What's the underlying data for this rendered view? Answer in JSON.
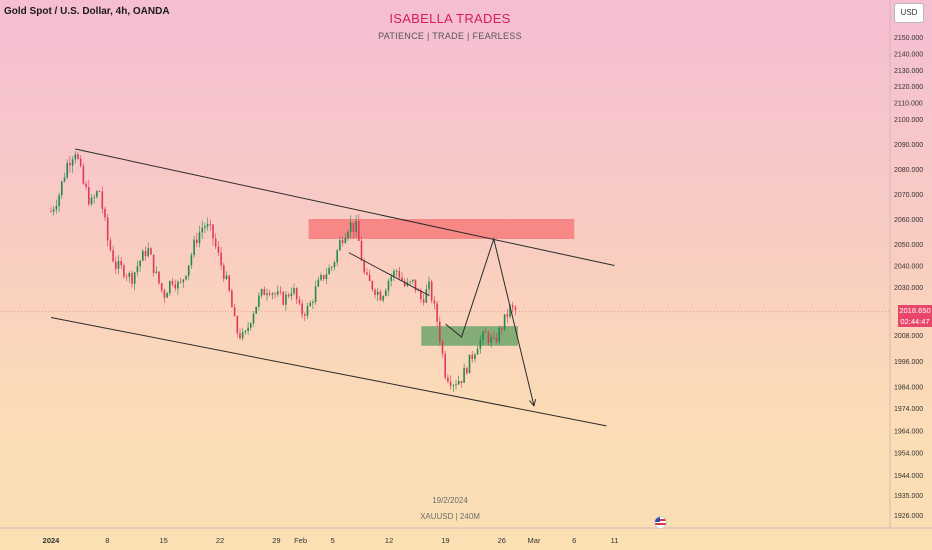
{
  "header": {
    "symbol_title": "Gold Spot / U.S. Dollar, 4h, OANDA",
    "brand": "ISABELLA TRADES",
    "tagline": "PATIENCE  |  TRADE  |  FEARLESS",
    "currency_button": "USD"
  },
  "last_price": {
    "value": "2018.650",
    "countdown": "02:44:47"
  },
  "footer": {
    "date": "19/2/2024",
    "symbol": "XAUUSD | 240M",
    "flag_icon": "us-flag-icon"
  },
  "chart_data": {
    "type": "candlestick",
    "symbol": "XAUUSD",
    "timeframe": "4h",
    "ylim": [
      1920,
      2156
    ],
    "y_ticks": [
      "2150.000",
      "2140.000",
      "2130.000",
      "2120.000",
      "2110.000",
      "2100.000",
      "2090.000",
      "2080.000",
      "2070.000",
      "2060.000",
      "2050.000",
      "2040.000",
      "2030.000",
      "2018.650",
      "2008.000",
      "1996.000",
      "1984.000",
      "1974.000",
      "1964.000",
      "1954.000",
      "1944.000",
      "1935.000",
      "1926.000"
    ],
    "x_ticks": [
      "2024",
      "8",
      "15",
      "22",
      "29",
      "Feb",
      "5",
      "12",
      "19",
      "26",
      "Mar",
      "6",
      "11"
    ],
    "price_path": [
      [
        "2024-01-01",
        2063
      ],
      [
        "2024-01-02",
        2070
      ],
      [
        "2024-01-03",
        2082
      ],
      [
        "2024-01-04",
        2088
      ],
      [
        "2024-01-05",
        2074
      ],
      [
        "2024-01-06",
        2066
      ],
      [
        "2024-01-07",
        2072
      ],
      [
        "2024-01-08",
        2052
      ],
      [
        "2024-01-09",
        2040
      ],
      [
        "2024-01-10",
        2038
      ],
      [
        "2024-01-11",
        2034
      ],
      [
        "2024-01-12",
        2042
      ],
      [
        "2024-01-13",
        2048
      ],
      [
        "2024-01-14",
        2036
      ],
      [
        "2024-01-15",
        2026
      ],
      [
        "2024-01-16",
        2034
      ],
      [
        "2024-01-17",
        2030
      ],
      [
        "2024-01-18",
        2040
      ],
      [
        "2024-01-19",
        2052
      ],
      [
        "2024-01-20",
        2058
      ],
      [
        "2024-01-21",
        2054
      ],
      [
        "2024-01-22",
        2042
      ],
      [
        "2024-01-23",
        2030
      ],
      [
        "2024-01-24",
        2010
      ],
      [
        "2024-01-25",
        2006
      ],
      [
        "2024-01-26",
        2018
      ],
      [
        "2024-01-27",
        2026
      ],
      [
        "2024-01-28",
        2030
      ],
      [
        "2024-01-29",
        2026
      ],
      [
        "2024-01-30",
        2024
      ],
      [
        "2024-01-31",
        2030
      ],
      [
        "2024-02-01",
        2018
      ],
      [
        "2024-02-02",
        2020
      ],
      [
        "2024-02-03",
        2030
      ],
      [
        "2024-02-04",
        2036
      ],
      [
        "2024-02-05",
        2040
      ],
      [
        "2024-02-06",
        2052
      ],
      [
        "2024-02-07",
        2058
      ],
      [
        "2024-02-08",
        2056
      ],
      [
        "2024-02-09",
        2034
      ],
      [
        "2024-02-10",
        2030
      ],
      [
        "2024-02-11",
        2026
      ],
      [
        "2024-02-12",
        2034
      ],
      [
        "2024-02-13",
        2038
      ],
      [
        "2024-02-14",
        2030
      ],
      [
        "2024-02-15",
        2032
      ],
      [
        "2024-02-16",
        2024
      ],
      [
        "2024-02-17",
        2030
      ],
      [
        "2024-02-18",
        2014
      ],
      [
        "2024-02-19",
        1990
      ],
      [
        "2024-02-20",
        1986
      ],
      [
        "2024-02-21",
        1988
      ],
      [
        "2024-02-22",
        1996
      ],
      [
        "2024-02-23",
        2004
      ],
      [
        "2024-02-24",
        2008
      ],
      [
        "2024-02-25",
        2004
      ],
      [
        "2024-02-26",
        2012
      ],
      [
        "2024-02-27",
        2020
      ],
      [
        "2024-02-28",
        2018.65
      ]
    ],
    "annotations": {
      "descending_channel": {
        "upper": [
          [
            "2024-01-04",
            2088
          ],
          [
            "2024-03-11",
            2040
          ]
        ],
        "lower": [
          [
            "2024-01-01",
            2016
          ],
          [
            "2024-03-10",
            1966
          ]
        ]
      },
      "minor_trendline": [
        [
          "2024-02-07",
          2046
        ],
        [
          "2024-02-17",
          2026
        ]
      ],
      "resistance_zone": {
        "y": [
          2052,
          2060
        ],
        "x": [
          "2024-02-02",
          "2024-03-06"
        ],
        "color": "#f77b7b"
      },
      "support_zone": {
        "y": [
          2003,
          2012
        ],
        "x": [
          "2024-02-16",
          "2024-02-28"
        ],
        "color": "#6fa56a"
      },
      "projection_path": [
        [
          "2024-02-19",
          2013
        ],
        [
          "2024-02-21",
          2007
        ],
        [
          "2024-02-25",
          2052
        ],
        [
          "2024-03-01",
          1975
        ]
      ]
    }
  }
}
